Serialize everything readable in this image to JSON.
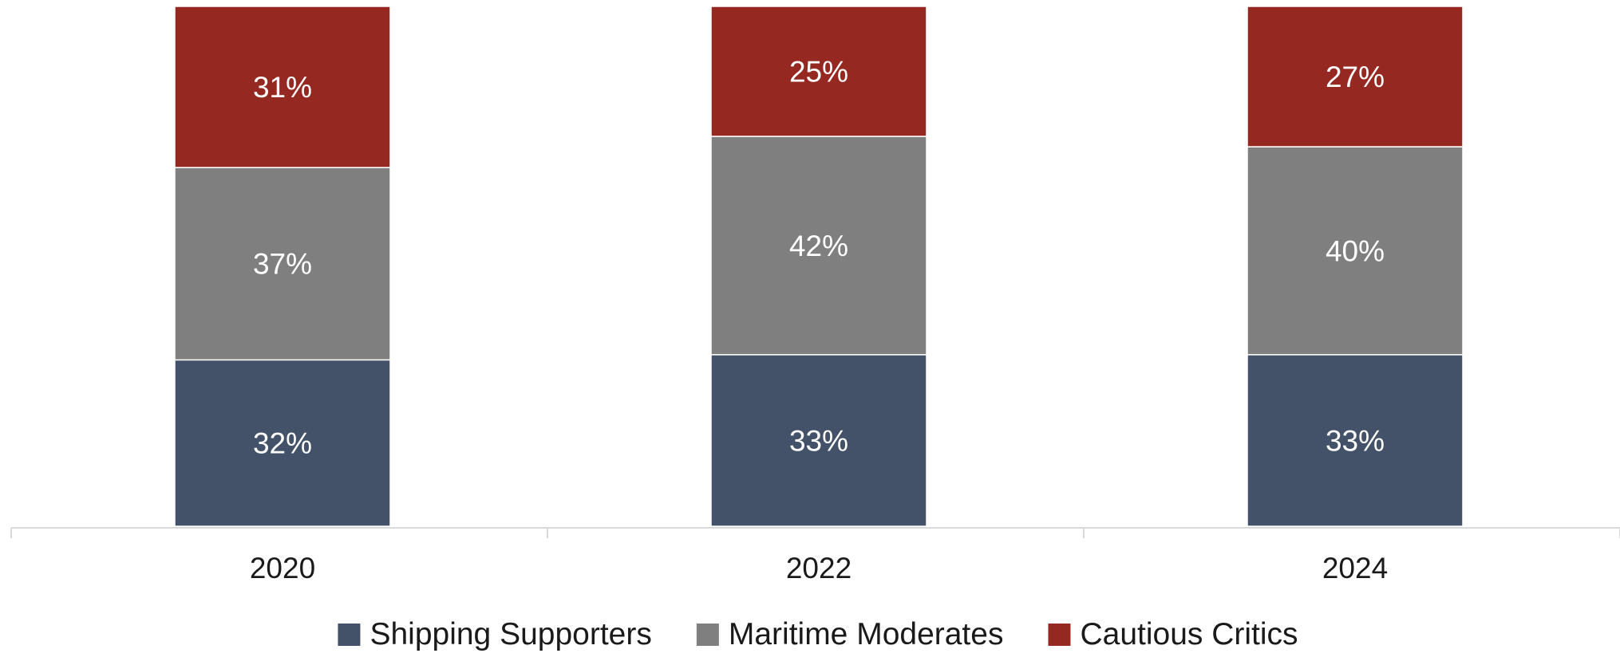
{
  "chart_data": {
    "type": "bar",
    "stacked": true,
    "categories": [
      "2020",
      "2022",
      "2024"
    ],
    "series": [
      {
        "name": "Shipping Supporters",
        "values": [
          32,
          33,
          33
        ],
        "labels": [
          "32%",
          "33%",
          "33%"
        ],
        "color": "#435268"
      },
      {
        "name": "Maritime Moderates",
        "values": [
          37,
          42,
          40
        ],
        "labels": [
          "37%",
          "42%",
          "40%"
        ],
        "color": "#7f7f7f"
      },
      {
        "name": "Cautious Critics",
        "values": [
          31,
          25,
          27
        ],
        "labels": [
          "31%",
          "25%",
          "27%"
        ],
        "color": "#952922"
      }
    ],
    "title": "",
    "xlabel": "",
    "ylabel": "",
    "ylim": [
      0,
      100
    ],
    "grid": false,
    "legend_position": "bottom",
    "colors": {
      "axis": "#d9d9d9",
      "segment_text": "#ffffff",
      "tick_text": "#1a1a1a"
    }
  }
}
